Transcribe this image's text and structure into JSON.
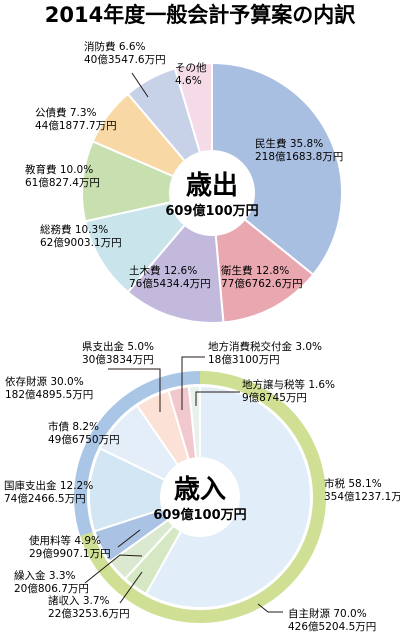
{
  "page_title": "2014年度一般会計予算案の内訳",
  "chart_data": [
    {
      "type": "pie",
      "name": "歳出",
      "center_label": "歳出",
      "center_total": "609億100万円",
      "slices": [
        {
          "label": "民生費",
          "percent": 35.8,
          "percent_text": "35.8%",
          "amount": "218億1683.8万円",
          "color": "#a9bfe1"
        },
        {
          "label": "衛生費",
          "percent": 12.8,
          "percent_text": "12.8%",
          "amount": "77億6762.6万円",
          "color": "#e9a8b0"
        },
        {
          "label": "土木費",
          "percent": 12.6,
          "percent_text": "12.6%",
          "amount": "76億5434.4万円",
          "color": "#c2b9dd"
        },
        {
          "label": "総務費",
          "percent": 10.3,
          "percent_text": "10.3%",
          "amount": "62億9003.1万円",
          "color": "#c9e4ea"
        },
        {
          "label": "教育費",
          "percent": 10.0,
          "percent_text": "10.0%",
          "amount": "61億827.4万円",
          "color": "#c8dfb0"
        },
        {
          "label": "公債費",
          "percent": 7.3,
          "percent_text": "7.3%",
          "amount": "44億1877.7万円",
          "color": "#f8d9a5"
        },
        {
          "label": "消防費",
          "percent": 6.6,
          "percent_text": "6.6%",
          "amount": "40億3547.6万円",
          "color": "#c7d1e8"
        },
        {
          "label": "その他",
          "percent": 4.6,
          "percent_text": "4.6%",
          "amount": "",
          "color": "#f5dbe7"
        }
      ]
    },
    {
      "type": "pie",
      "name": "歳入",
      "center_label": "歳入",
      "center_total": "609億100万円",
      "outer_ring": [
        {
          "label": "自主財源",
          "percent": 70.0,
          "percent_text": "70.0%",
          "amount": "426億5204.5万円",
          "color": "#cfe094"
        },
        {
          "label": "依存財源",
          "percent": 30.0,
          "percent_text": "30.0%",
          "amount": "182億4895.5万円",
          "color": "#a9c6e6"
        }
      ],
      "slices": [
        {
          "label": "市税",
          "percent": 58.1,
          "percent_text": "58.1%",
          "amount": "354億1237.1万円",
          "color": "#e1eef9"
        },
        {
          "label": "諸収入",
          "percent": 3.7,
          "percent_text": "3.7%",
          "amount": "22億3253.6万円",
          "color": "#d6e7c3"
        },
        {
          "label": "繰入金",
          "percent": 3.3,
          "percent_text": "3.3%",
          "amount": "20億806.7万円",
          "color": "#dbe9d0"
        },
        {
          "label": "使用料等",
          "percent": 4.9,
          "percent_text": "4.9%",
          "amount": "29億9907.1万円",
          "color": "#aac2e3"
        },
        {
          "label": "国庫支出金",
          "percent": 12.2,
          "percent_text": "12.2%",
          "amount": "74億2466.5万円",
          "color": "#d3e6f3"
        },
        {
          "label": "市債",
          "percent": 8.2,
          "percent_text": "8.2%",
          "amount": "49億6750万円",
          "color": "#e3eef8"
        },
        {
          "label": "県支出金",
          "percent": 5.0,
          "percent_text": "5.0%",
          "amount": "30億3834万円",
          "color": "#fbe1d6"
        },
        {
          "label": "地方消費税交付金",
          "percent": 3.0,
          "percent_text": "3.0%",
          "amount": "18億3100万円",
          "color": "#f2c8cf"
        },
        {
          "label": "地方譲与税等",
          "percent": 1.6,
          "percent_text": "1.6%",
          "amount": "9億8745万円",
          "color": "#e8f1ea"
        }
      ]
    }
  ]
}
